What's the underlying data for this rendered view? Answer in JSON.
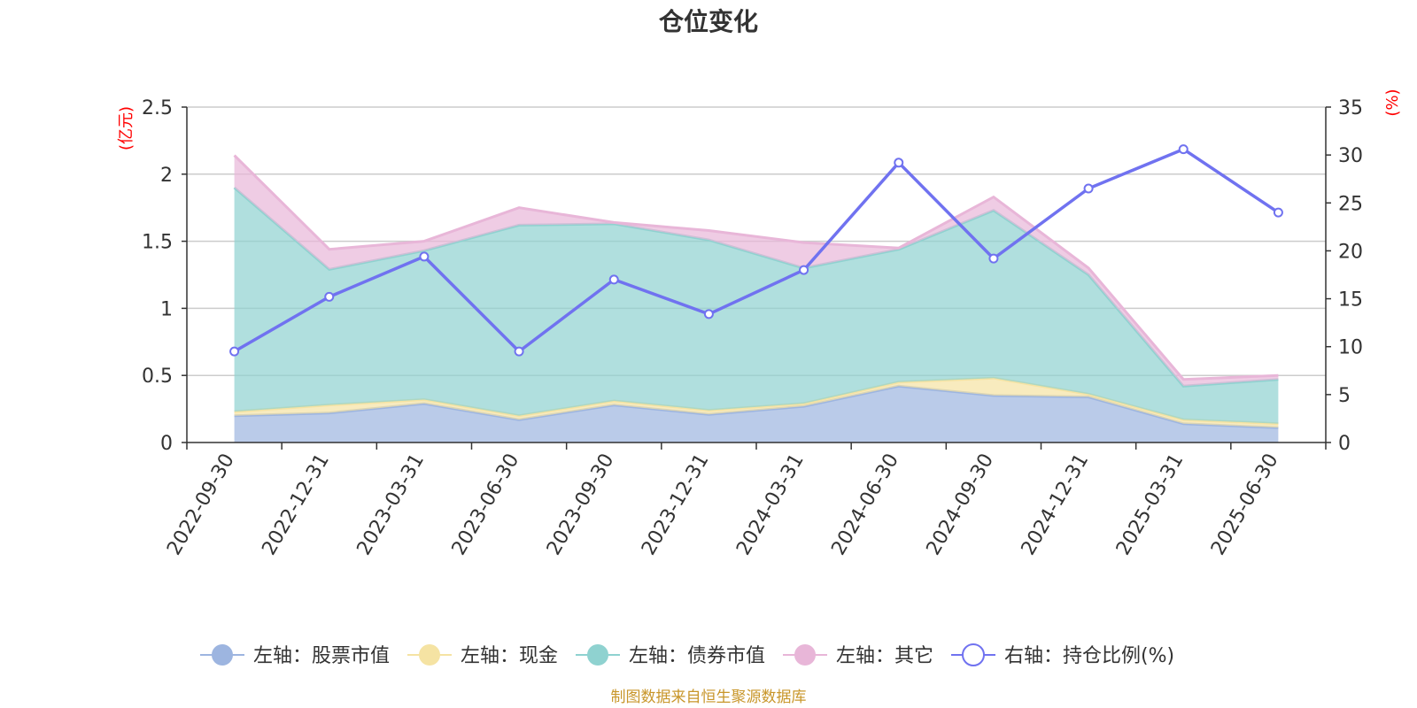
{
  "chart_data": {
    "type": "area",
    "title": "仓位变化",
    "categories": [
      "2022-09-30",
      "2022-12-31",
      "2023-03-31",
      "2023-06-30",
      "2023-09-30",
      "2023-12-31",
      "2024-03-31",
      "2024-06-30",
      "2024-09-30",
      "2024-12-31",
      "2025-03-31",
      "2025-06-30"
    ],
    "left_axis": {
      "unit": "(亿元)",
      "ylim": [
        0,
        2.5
      ],
      "ticks": [
        "0",
        "0.5",
        "1",
        "1.5",
        "2",
        "2.5"
      ]
    },
    "right_axis": {
      "unit": "(%)",
      "ylim": [
        0,
        35
      ],
      "ticks": [
        "0",
        "5",
        "10",
        "15",
        "20",
        "25",
        "30",
        "35"
      ]
    },
    "stacked_series": [
      {
        "name": "左轴：股票市值",
        "color": "#9db5e0",
        "values": [
          0.2,
          0.22,
          0.29,
          0.17,
          0.28,
          0.21,
          0.27,
          0.42,
          0.35,
          0.34,
          0.14,
          0.11
        ]
      },
      {
        "name": "左轴：现金",
        "color": "#f5e3a3",
        "values": [
          0.03,
          0.06,
          0.03,
          0.03,
          0.03,
          0.03,
          0.02,
          0.03,
          0.13,
          0.02,
          0.03,
          0.03
        ]
      },
      {
        "name": "左轴：债券市值",
        "color": "#8fd2d0",
        "values": [
          1.67,
          1.01,
          1.11,
          1.42,
          1.32,
          1.27,
          1.01,
          0.99,
          1.25,
          0.89,
          0.25,
          0.33
        ]
      },
      {
        "name": "左轴：其它",
        "color": "#e8b6d8",
        "values": [
          0.24,
          0.15,
          0.07,
          0.13,
          0.01,
          0.07,
          0.19,
          0.01,
          0.1,
          0.05,
          0.05,
          0.03
        ]
      }
    ],
    "line_series": {
      "name": "右轴：持仓比例(%)",
      "color": "#7072f0",
      "values": [
        9.5,
        15.2,
        19.4,
        9.5,
        17.0,
        13.4,
        18.0,
        29.2,
        19.2,
        26.5,
        30.6,
        24.0
      ]
    },
    "grid": true,
    "legend_position": "bottom"
  },
  "source": "制图数据来自恒生聚源数据库"
}
